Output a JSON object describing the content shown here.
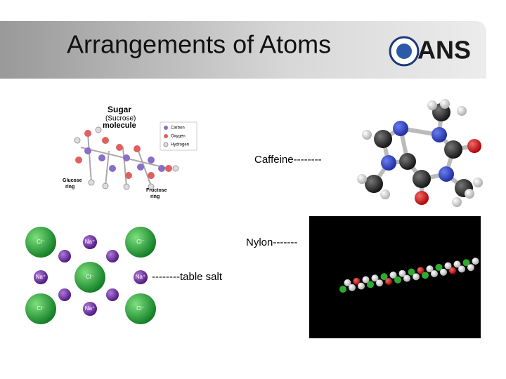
{
  "header": {
    "title": "Arrangements of Atoms",
    "logo": "ANS"
  },
  "sugar": {
    "title": "Sugar",
    "subtitle": "(Sucrose)",
    "word": "molecule",
    "legend": [
      "Carbon",
      "Oxygen",
      "Hydrogen"
    ],
    "ring_labels": [
      [
        "Glucose",
        "ring"
      ],
      [
        "Fructose",
        "ring"
      ]
    ]
  },
  "captions": {
    "caffeine": "Caffeine--------",
    "nylon": "Nylon-------",
    "salt": "--------table salt"
  },
  "salt_ions": {
    "chloride": "Cl⁻",
    "sodium": "Na⁺"
  }
}
